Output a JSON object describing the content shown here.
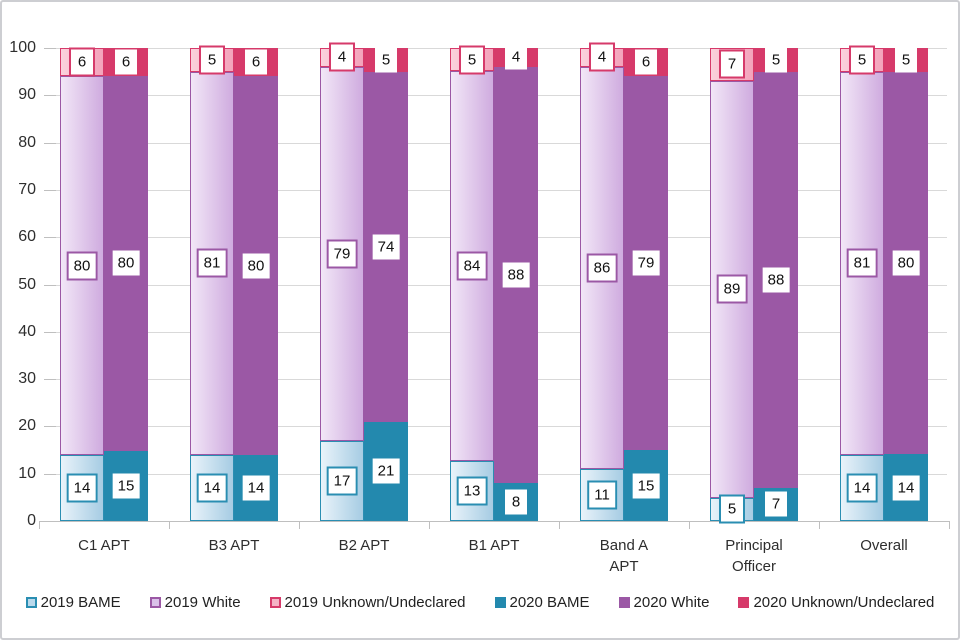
{
  "chart_data": {
    "type": "bar",
    "stacked": true,
    "title": "",
    "xlabel": "",
    "ylabel": "",
    "ylim": [
      0,
      100
    ],
    "yticks": [
      0,
      10,
      20,
      30,
      40,
      50,
      60,
      70,
      80,
      90,
      100
    ],
    "grid": true,
    "legend_position": "bottom",
    "categories": [
      "C1 APT",
      "B3 APT",
      "B2 APT",
      "B1 APT",
      "Band A APT",
      "Principal Officer",
      "Overall"
    ],
    "category_lines": [
      [
        "C1 APT"
      ],
      [
        "B3 APT"
      ],
      [
        "B2 APT"
      ],
      [
        "B1 APT"
      ],
      [
        "Band A",
        "APT"
      ],
      [
        "Principal",
        "Officer"
      ],
      [
        "Overall"
      ]
    ],
    "series": [
      {
        "name": "2019 BAME",
        "values": [
          14,
          14,
          17,
          13,
          11,
          5,
          14
        ],
        "style": {
          "variant": "outline",
          "gradient": [
            "#e9f3fa",
            "#a6cce3"
          ],
          "accent": "#2a8eb2",
          "legend_fill": "#b9d9ec"
        }
      },
      {
        "name": "2019 White",
        "values": [
          80,
          81,
          79,
          84,
          86,
          89,
          81
        ],
        "style": {
          "variant": "outline",
          "gradient": [
            "#f2e7f7",
            "#cfabdf"
          ],
          "accent": "#9b58a5",
          "legend_fill": "#dac1e9"
        }
      },
      {
        "name": "2019 Unknown/Undeclared",
        "values": [
          6,
          5,
          4,
          5,
          4,
          7,
          5
        ],
        "style": {
          "variant": "outline",
          "gradient": [
            "#fbd2dc",
            "#f3a2bb"
          ],
          "accent": "#d63a6a",
          "legend_fill": "#f5b3c6"
        }
      },
      {
        "name": "2020 BAME",
        "values": [
          15,
          14,
          21,
          8,
          15,
          7,
          14
        ],
        "style": {
          "variant": "solid",
          "fill": "#2389ae",
          "accent": "#2389ae"
        }
      },
      {
        "name": "2020 White",
        "values": [
          80,
          80,
          74,
          88,
          79,
          88,
          80
        ],
        "style": {
          "variant": "solid",
          "fill": "#9b58a5",
          "accent": "#9b58a5"
        }
      },
      {
        "name": "2020 Unknown/Undeclared",
        "values": [
          6,
          6,
          5,
          4,
          6,
          5,
          5
        ],
        "style": {
          "variant": "solid",
          "fill": "#d63a6a",
          "accent": "#d63a6a"
        }
      }
    ]
  },
  "colors": {
    "gridline": "#d9d9d9",
    "axis": "#bfbfbf",
    "text": "#2e2e2e",
    "background": "#ffffff",
    "frame_border": "#cdced2"
  }
}
